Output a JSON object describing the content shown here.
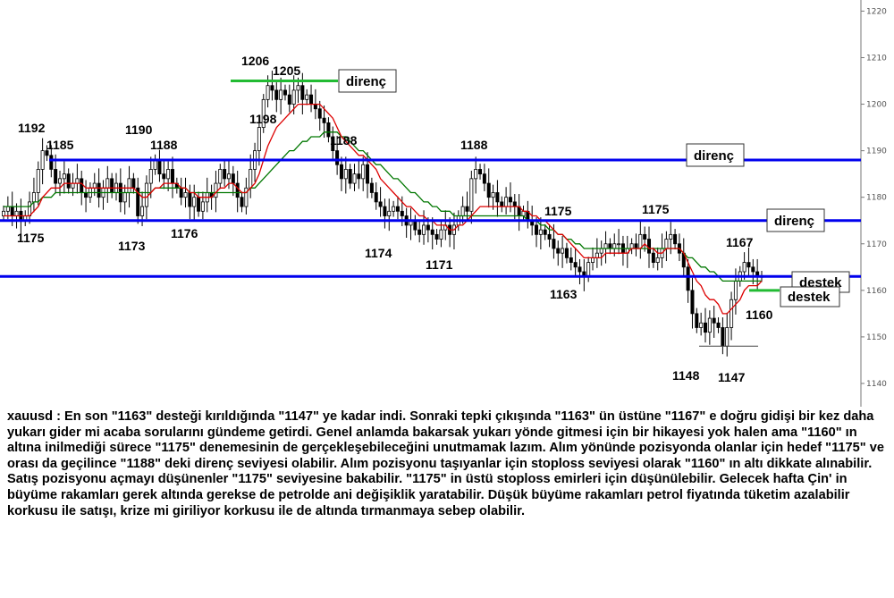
{
  "chart_data": {
    "type": "candlestick",
    "symbol": "xauusd",
    "y_axis": {
      "min": 1135,
      "max": 1222,
      "ticks": [
        "1140",
        "1150",
        "1160",
        "1170",
        "1180",
        "1190",
        "1200",
        "1210",
        "1220"
      ],
      "position": "right"
    },
    "grid": false,
    "levels": [
      {
        "value": 1188,
        "label": "direnç",
        "color": "#0000ee"
      },
      {
        "value": 1175,
        "label": "direnç",
        "color": "#0000ee"
      },
      {
        "value": 1163,
        "label": "destek",
        "color": "#0000ee"
      }
    ],
    "short_lines": [
      {
        "value": 1205,
        "label": "direnç",
        "color": "#22bb33"
      },
      {
        "value": 1160,
        "label": "destek",
        "color": "#22bb33"
      }
    ],
    "price_labels": [
      "1192",
      "1185",
      "1175",
      "1190",
      "1188",
      "1173",
      "1176",
      "1206",
      "1205",
      "1198",
      "1188",
      "1174",
      "1171",
      "1188",
      "1175",
      "1163",
      "1175",
      "1167",
      "1160",
      "1148",
      "1147"
    ],
    "series": [
      {
        "name": "price",
        "color": "#000000",
        "close": [
          1177,
          1178,
          1176,
          1177,
          1175,
          1176,
          1179,
          1181,
          1186,
          1190,
          1189,
          1186,
          1183,
          1184,
          1185,
          1182,
          1183,
          1184,
          1181,
          1180,
          1182,
          1183,
          1180,
          1182,
          1184,
          1181,
          1183,
          1179,
          1181,
          1184,
          1182,
          1176,
          1178,
          1183,
          1186,
          1188,
          1185,
          1184,
          1186,
          1183,
          1182,
          1180,
          1181,
          1178,
          1180,
          1177,
          1179,
          1181,
          1180,
          1183,
          1186,
          1184,
          1185,
          1183,
          1180,
          1178,
          1182,
          1186,
          1190,
          1195,
          1201,
          1204,
          1203,
          1201,
          1203,
          1202,
          1200,
          1203,
          1204,
          1201,
          1202,
          1200,
          1199,
          1197,
          1196,
          1193,
          1190,
          1187,
          1184,
          1186,
          1183,
          1185,
          1184,
          1187,
          1183,
          1181,
          1179,
          1178,
          1176,
          1177,
          1178,
          1177,
          1176,
          1174,
          1175,
          1173,
          1172,
          1174,
          1173,
          1172,
          1171,
          1173,
          1174,
          1172,
          1174,
          1176,
          1178,
          1177,
          1184,
          1186,
          1185,
          1183,
          1180,
          1181,
          1179,
          1178,
          1180,
          1179,
          1178,
          1176,
          1177,
          1175,
          1174,
          1172,
          1173,
          1172,
          1171,
          1169,
          1168,
          1169,
          1167,
          1166,
          1165,
          1164,
          1163,
          1166,
          1167,
          1168,
          1169,
          1170,
          1169,
          1170,
          1170,
          1168,
          1169,
          1170,
          1169,
          1172,
          1171,
          1168,
          1166,
          1167,
          1169,
          1171,
          1172,
          1170,
          1168,
          1165,
          1160,
          1155,
          1152,
          1153,
          1151,
          1154,
          1153,
          1152,
          1148,
          1152,
          1158,
          1162,
          1164,
          1166,
          1165,
          1164,
          1163,
          1163
        ]
      },
      {
        "name": "ema_fast",
        "color": "#dd0000",
        "close": [
          1176,
          1176,
          1176,
          1176,
          1176,
          1176,
          1176,
          1177,
          1178,
          1180,
          1181,
          1182,
          1182,
          1182,
          1183,
          1183,
          1183,
          1183,
          1183,
          1182,
          1182,
          1182,
          1182,
          1182,
          1182,
          1182,
          1182,
          1182,
          1182,
          1182,
          1182,
          1181,
          1180,
          1180,
          1181,
          1182,
          1182,
          1183,
          1183,
          1183,
          1183,
          1182,
          1182,
          1181,
          1181,
          1180,
          1180,
          1180,
          1180,
          1181,
          1182,
          1182,
          1183,
          1183,
          1182,
          1181,
          1181,
          1182,
          1183,
          1185,
          1188,
          1191,
          1193,
          1195,
          1196,
          1197,
          1198,
          1199,
          1200,
          1200,
          1200,
          1200,
          1200,
          1200,
          1199,
          1198,
          1197,
          1195,
          1193,
          1192,
          1191,
          1190,
          1189,
          1189,
          1188,
          1187,
          1186,
          1184,
          1183,
          1182,
          1181,
          1180,
          1179,
          1178,
          1178,
          1177,
          1176,
          1176,
          1175,
          1175,
          1174,
          1174,
          1174,
          1173,
          1173,
          1174,
          1174,
          1175,
          1176,
          1177,
          1178,
          1178,
          1178,
          1178,
          1178,
          1178,
          1178,
          1178,
          1178,
          1178,
          1177,
          1177,
          1176,
          1176,
          1175,
          1175,
          1174,
          1173,
          1172,
          1172,
          1171,
          1170,
          1169,
          1168,
          1167,
          1167,
          1167,
          1167,
          1167,
          1168,
          1168,
          1168,
          1168,
          1168,
          1168,
          1169,
          1169,
          1169,
          1170,
          1169,
          1169,
          1168,
          1168,
          1169,
          1169,
          1169,
          1169,
          1168,
          1166,
          1164,
          1162,
          1161,
          1159,
          1158,
          1158,
          1157,
          1155,
          1155,
          1156,
          1157,
          1158,
          1160,
          1161,
          1161,
          1161,
          1162
        ]
      },
      {
        "name": "ema_slow",
        "color": "#007700",
        "close": [
          1178,
          1178,
          1178,
          1178,
          1178,
          1178,
          1178,
          1179,
          1179,
          1180,
          1180,
          1180,
          1181,
          1181,
          1181,
          1181,
          1181,
          1181,
          1181,
          1181,
          1181,
          1181,
          1181,
          1181,
          1181,
          1181,
          1181,
          1181,
          1181,
          1181,
          1181,
          1181,
          1181,
          1181,
          1181,
          1182,
          1182,
          1182,
          1182,
          1182,
          1182,
          1182,
          1182,
          1181,
          1181,
          1181,
          1181,
          1181,
          1181,
          1181,
          1181,
          1181,
          1181,
          1181,
          1181,
          1181,
          1181,
          1182,
          1182,
          1183,
          1184,
          1185,
          1186,
          1187,
          1188,
          1189,
          1190,
          1190,
          1191,
          1192,
          1192,
          1193,
          1193,
          1193,
          1194,
          1194,
          1194,
          1194,
          1193,
          1193,
          1192,
          1191,
          1190,
          1190,
          1189,
          1188,
          1187,
          1187,
          1186,
          1185,
          1184,
          1184,
          1183,
          1182,
          1181,
          1181,
          1180,
          1179,
          1179,
          1178,
          1178,
          1177,
          1177,
          1177,
          1176,
          1176,
          1176,
          1176,
          1176,
          1176,
          1176,
          1176,
          1176,
          1176,
          1176,
          1176,
          1176,
          1176,
          1176,
          1176,
          1176,
          1175,
          1175,
          1175,
          1174,
          1174,
          1173,
          1173,
          1172,
          1172,
          1171,
          1171,
          1170,
          1170,
          1169,
          1169,
          1169,
          1169,
          1169,
          1169,
          1169,
          1169,
          1169,
          1169,
          1169,
          1169,
          1169,
          1169,
          1169,
          1169,
          1169,
          1169,
          1169,
          1169,
          1169,
          1169,
          1169,
          1168,
          1167,
          1167,
          1166,
          1165,
          1165,
          1164,
          1164,
          1163,
          1162,
          1162,
          1162,
          1162,
          1162,
          1162,
          1162,
          1162,
          1162,
          1162
        ]
      }
    ]
  },
  "commentary": "xauusd : En son \"1163\" desteği kırıldığında \"1147\" ye kadar indi. Sonraki tepki çıkışında \"1163\" ün üstüne \"1167\" e doğru gidişi bir kez daha yukarı gider mi acaba sorularını gündeme getirdi. Genel anlamda bakarsak yukarı yönde gitmesi için bir hikayesi yok halen ama \"1160\" ın altına inilmediği sürece \"1175\" denemesinin de gerçekleşebileceğini unutmamak lazım. Alım yönünde pozisyonda olanlar için hedef \"1175\" ve orası da geçilince \"1188\" deki direnç seviyesi olabilir.  Alım pozisyonu taşıyanlar için stoploss seviyesi olarak \"1160\" ın altı dikkate alınabilir. Satış pozisyonu açmayı düşünenler \"1175\" seviyesine bakabilir. \"1175\" in üstü stoploss emirleri için düşünülebilir. Gelecek hafta Çin' in büyüme rakamları gerek altında gerekse de petrolde ani değişiklik yaratabilir. Düşük büyüme rakamları petrol fiyatında tüketim azalabilir korkusu ile satışı, krize mi giriliyor korkusu ile de altında tırmanmaya sebep olabilir."
}
